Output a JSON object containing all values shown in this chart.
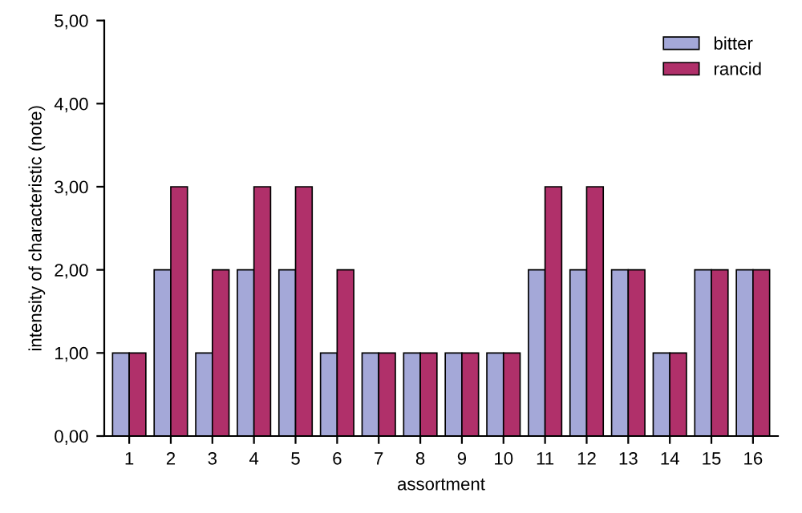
{
  "chart_data": {
    "type": "bar",
    "xlabel": "assortment",
    "ylabel": "intensity of characteristic (note)",
    "categories": [
      "1",
      "2",
      "3",
      "4",
      "5",
      "6",
      "7",
      "8",
      "9",
      "10",
      "11",
      "12",
      "13",
      "14",
      "15",
      "16"
    ],
    "series": [
      {
        "name": "bitter",
        "color": "#a4a8d8",
        "values": [
          1,
          2,
          1,
          2,
          2,
          1,
          1,
          1,
          1,
          1,
          2,
          2,
          2,
          1,
          2,
          2
        ]
      },
      {
        "name": "rancid",
        "color": "#b0306a",
        "values": [
          1,
          3,
          2,
          3,
          3,
          2,
          1,
          1,
          1,
          1,
          3,
          3,
          2,
          1,
          2,
          2
        ]
      }
    ],
    "ylim": [
      0,
      5
    ],
    "yticks": [
      {
        "value": 0,
        "label": "0,00"
      },
      {
        "value": 1,
        "label": "1,00"
      },
      {
        "value": 2,
        "label": "2,00"
      },
      {
        "value": 3,
        "label": "3,00"
      },
      {
        "value": 4,
        "label": "4,00"
      },
      {
        "value": 5,
        "label": "5,00"
      }
    ],
    "legend": "top right",
    "grid": false
  }
}
